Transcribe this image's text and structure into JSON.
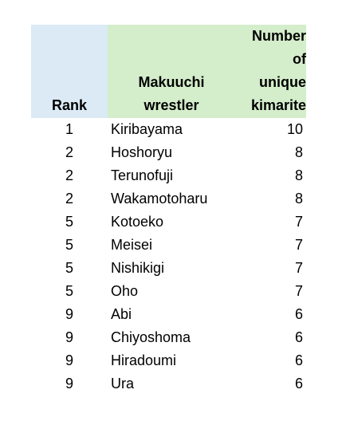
{
  "header": {
    "rank": "Rank",
    "wrestler_line1": "Makuuchi",
    "wrestler_line2": "wrestler",
    "number_line1": "Number",
    "number_line2": "of",
    "number_line3": "unique",
    "number_line4": "kimarite"
  },
  "rows": [
    {
      "rank": "1",
      "name": "Kiribayama",
      "count": "10"
    },
    {
      "rank": "2",
      "name": "Hoshoryu",
      "count": "8"
    },
    {
      "rank": "2",
      "name": "Terunofuji",
      "count": "8"
    },
    {
      "rank": "2",
      "name": "Wakamotoharu",
      "count": "8"
    },
    {
      "rank": "5",
      "name": "Kotoeko",
      "count": "7"
    },
    {
      "rank": "5",
      "name": "Meisei",
      "count": "7"
    },
    {
      "rank": "5",
      "name": "Nishikigi",
      "count": "7"
    },
    {
      "rank": "5",
      "name": "Oho",
      "count": "7"
    },
    {
      "rank": "9",
      "name": "Abi",
      "count": "6"
    },
    {
      "rank": "9",
      "name": "Chiyoshoma",
      "count": "6"
    },
    {
      "rank": "9",
      "name": "Hiradoumi",
      "count": "6"
    },
    {
      "rank": "9",
      "name": "Ura",
      "count": "6"
    }
  ],
  "colors": {
    "rank_header_bg": "#dbeaf5",
    "wrestler_header_bg": "#d4edcb"
  }
}
